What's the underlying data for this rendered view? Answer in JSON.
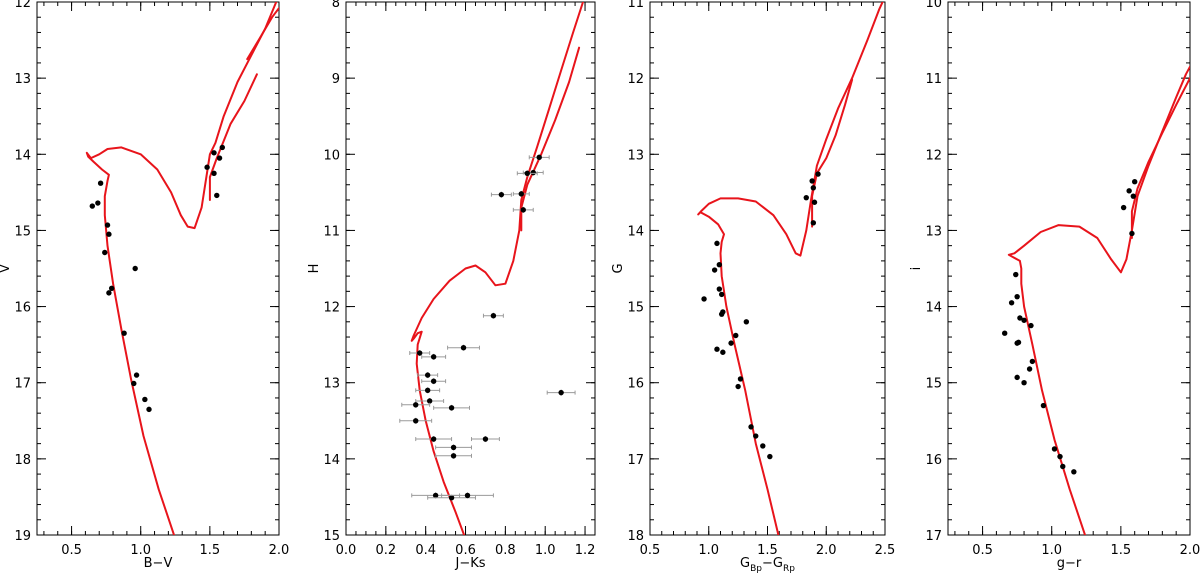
{
  "figure": {
    "panel_count": 4
  },
  "colors": {
    "isochrone": "#e8141b",
    "points": "#000000",
    "error_bars": "#9a9a9a",
    "frame": "#000000"
  },
  "chart_data": [
    {
      "type": "scatter",
      "xlabel": "B−V",
      "ylabel": "V",
      "xlim": [
        0.25,
        2.0
      ],
      "ylim": [
        19,
        12
      ],
      "y_inverted": true,
      "xticks": [
        "0.5",
        "1.0",
        "1.5",
        "2.0"
      ],
      "xtick_values": [
        0.5,
        1.0,
        1.5,
        2.0
      ],
      "yticks": [
        "12",
        "13",
        "14",
        "15",
        "16",
        "17",
        "18",
        "19"
      ],
      "ytick_values": [
        12,
        13,
        14,
        15,
        16,
        17,
        18,
        19
      ],
      "grid": false,
      "points": [
        [
          0.71,
          14.38
        ],
        [
          0.65,
          14.68
        ],
        [
          0.69,
          14.64
        ],
        [
          0.76,
          14.93
        ],
        [
          0.77,
          15.05
        ],
        [
          0.74,
          15.29
        ],
        [
          0.96,
          15.5
        ],
        [
          0.77,
          15.82
        ],
        [
          0.79,
          15.76
        ],
        [
          0.88,
          16.35
        ],
        [
          0.97,
          16.9
        ],
        [
          0.95,
          17.01
        ],
        [
          1.03,
          17.22
        ],
        [
          1.06,
          17.35
        ],
        [
          1.48,
          14.17
        ],
        [
          1.53,
          13.98
        ],
        [
          1.59,
          13.91
        ],
        [
          1.57,
          14.05
        ],
        [
          1.53,
          14.25
        ],
        [
          1.55,
          14.54
        ]
      ],
      "isochrone": [
        [
          1.25,
          19.05
        ],
        [
          1.13,
          18.4
        ],
        [
          1.02,
          17.7
        ],
        [
          0.93,
          16.95
        ],
        [
          0.86,
          16.3
        ],
        [
          0.8,
          15.7
        ],
        [
          0.76,
          15.2
        ],
        [
          0.74,
          14.8
        ],
        [
          0.74,
          14.55
        ],
        [
          0.76,
          14.35
        ],
        [
          0.77,
          14.27
        ],
        [
          0.72,
          14.2
        ],
        [
          0.66,
          14.1
        ],
        [
          0.62,
          14.03
        ],
        [
          0.61,
          13.98
        ],
        [
          0.64,
          14.05
        ],
        [
          0.7,
          14.0
        ],
        [
          0.76,
          13.93
        ],
        [
          0.86,
          13.91
        ],
        [
          1.0,
          14.0
        ],
        [
          1.12,
          14.2
        ],
        [
          1.22,
          14.5
        ],
        [
          1.29,
          14.8
        ],
        [
          1.34,
          14.95
        ],
        [
          1.39,
          14.97
        ],
        [
          1.44,
          14.7
        ],
        [
          1.5,
          14.0
        ],
        [
          1.54,
          13.85
        ],
        [
          1.6,
          13.5
        ],
        [
          1.7,
          13.05
        ],
        [
          1.8,
          12.7
        ],
        [
          1.9,
          12.35
        ],
        [
          1.98,
          12.0
        ]
      ],
      "isochrone_branch": [
        [
          1.5,
          14.6
        ],
        [
          1.5,
          14.3
        ],
        [
          1.55,
          14.05
        ],
        [
          1.65,
          13.6
        ],
        [
          1.75,
          13.3
        ],
        [
          1.84,
          12.95
        ]
      ],
      "isochrone_branch2": [
        [
          1.77,
          12.75
        ],
        [
          1.86,
          12.48
        ],
        [
          1.95,
          12.2
        ],
        [
          2.0,
          12.08
        ]
      ]
    },
    {
      "type": "scatter",
      "xlabel": "J−Ks",
      "ylabel": "H",
      "xlim": [
        0.0,
        1.25
      ],
      "ylim": [
        15,
        8
      ],
      "y_inverted": true,
      "xticks": [
        "0.0",
        "0.2",
        "0.4",
        "0.6",
        "0.8",
        "1.0",
        "1.2"
      ],
      "xtick_values": [
        0.0,
        0.2,
        0.4,
        0.6,
        0.8,
        1.0,
        1.2
      ],
      "yticks": [
        "8",
        "9",
        "10",
        "11",
        "12",
        "13",
        "14",
        "15"
      ],
      "ytick_values": [
        8,
        9,
        10,
        11,
        12,
        13,
        14,
        15
      ],
      "grid": false,
      "points": [
        [
          0.97,
          10.04,
          0.05
        ],
        [
          0.94,
          10.24,
          0.05
        ],
        [
          0.91,
          10.25,
          0.05
        ],
        [
          0.78,
          10.53,
          0.05
        ],
        [
          0.88,
          10.52,
          0.04
        ],
        [
          0.89,
          10.73,
          0.05
        ],
        [
          0.74,
          12.12,
          0.05
        ],
        [
          0.59,
          12.54,
          0.08
        ],
        [
          0.37,
          12.61,
          0.05
        ],
        [
          0.44,
          12.66,
          0.06
        ],
        [
          0.41,
          12.9,
          0.05
        ],
        [
          0.44,
          12.98,
          0.06
        ],
        [
          0.41,
          13.1,
          0.06
        ],
        [
          0.42,
          13.24,
          0.07
        ],
        [
          0.35,
          13.29,
          0.07
        ],
        [
          0.53,
          13.33,
          0.09
        ],
        [
          0.35,
          13.5,
          0.08
        ],
        [
          0.44,
          13.74,
          0.09
        ],
        [
          0.7,
          13.74,
          0.07
        ],
        [
          0.54,
          13.85,
          0.09
        ],
        [
          0.54,
          13.96,
          0.09
        ],
        [
          1.08,
          13.13,
          0.07
        ],
        [
          0.45,
          14.48,
          0.12
        ],
        [
          0.53,
          14.51,
          0.12
        ],
        [
          0.61,
          14.48,
          0.13
        ]
      ],
      "isochrone": [
        [
          0.6,
          15.05
        ],
        [
          0.55,
          14.7
        ],
        [
          0.49,
          14.3
        ],
        [
          0.44,
          13.9
        ],
        [
          0.4,
          13.5
        ],
        [
          0.37,
          13.1
        ],
        [
          0.355,
          12.75
        ],
        [
          0.36,
          12.5
        ],
        [
          0.38,
          12.33
        ],
        [
          0.36,
          12.35
        ],
        [
          0.34,
          12.42
        ],
        [
          0.33,
          12.45
        ],
        [
          0.34,
          12.38
        ],
        [
          0.38,
          12.15
        ],
        [
          0.44,
          11.9
        ],
        [
          0.52,
          11.66
        ],
        [
          0.6,
          11.5
        ],
        [
          0.65,
          11.46
        ],
        [
          0.7,
          11.55
        ],
        [
          0.75,
          11.72
        ],
        [
          0.8,
          11.7
        ],
        [
          0.84,
          11.4
        ],
        [
          0.87,
          11.0
        ],
        [
          0.88,
          10.6
        ],
        [
          0.91,
          10.3
        ],
        [
          0.96,
          9.9
        ],
        [
          1.02,
          9.4
        ],
        [
          1.08,
          8.9
        ],
        [
          1.14,
          8.4
        ],
        [
          1.19,
          8.0
        ]
      ],
      "isochrone_branch": [
        [
          0.88,
          11.0
        ],
        [
          0.88,
          10.7
        ],
        [
          0.91,
          10.4
        ],
        [
          0.98,
          10.0
        ],
        [
          1.05,
          9.55
        ],
        [
          1.12,
          9.05
        ],
        [
          1.17,
          8.6
        ]
      ]
    },
    {
      "type": "scatter",
      "xlabel": "G_Bp−G_Rp",
      "xlabel_parts": {
        "g1": "G",
        "s1": "Bp",
        "sep": "−G",
        "s2": "Rp"
      },
      "ylabel": "G",
      "xlim": [
        0.5,
        2.5
      ],
      "ylim": [
        18,
        11
      ],
      "y_inverted": true,
      "xticks": [
        "0.5",
        "1.0",
        "1.5",
        "2.0",
        "2.5"
      ],
      "xtick_values": [
        0.5,
        1.0,
        1.5,
        2.0,
        2.5
      ],
      "yticks": [
        "11",
        "12",
        "13",
        "14",
        "15",
        "16",
        "17",
        "18"
      ],
      "ytick_values": [
        11,
        12,
        13,
        14,
        15,
        16,
        17,
        18
      ],
      "grid": false,
      "points": [
        [
          1.07,
          14.17
        ],
        [
          1.09,
          14.45
        ],
        [
          1.05,
          14.52
        ],
        [
          1.09,
          14.77
        ],
        [
          1.11,
          14.84
        ],
        [
          0.96,
          14.9
        ],
        [
          1.12,
          15.07
        ],
        [
          1.11,
          15.1
        ],
        [
          1.32,
          15.2
        ],
        [
          1.23,
          15.38
        ],
        [
          1.19,
          15.48
        ],
        [
          1.07,
          15.56
        ],
        [
          1.12,
          15.6
        ],
        [
          1.27,
          15.95
        ],
        [
          1.25,
          16.05
        ],
        [
          1.36,
          16.58
        ],
        [
          1.4,
          16.7
        ],
        [
          1.46,
          16.83
        ],
        [
          1.52,
          16.97
        ],
        [
          1.83,
          13.57
        ],
        [
          1.88,
          13.35
        ],
        [
          1.93,
          13.26
        ],
        [
          1.89,
          13.44
        ],
        [
          1.9,
          13.63
        ],
        [
          1.89,
          13.9
        ]
      ],
      "isochrone": [
        [
          1.6,
          18.05
        ],
        [
          1.5,
          17.4
        ],
        [
          1.4,
          16.8
        ],
        [
          1.31,
          16.1
        ],
        [
          1.22,
          15.5
        ],
        [
          1.15,
          15.0
        ],
        [
          1.11,
          14.6
        ],
        [
          1.1,
          14.3
        ],
        [
          1.11,
          14.15
        ],
        [
          1.13,
          14.05
        ],
        [
          1.08,
          13.92
        ],
        [
          1.0,
          13.82
        ],
        [
          0.93,
          13.76
        ],
        [
          0.91,
          13.79
        ],
        [
          0.94,
          13.74
        ],
        [
          1.0,
          13.65
        ],
        [
          1.1,
          13.58
        ],
        [
          1.25,
          13.58
        ],
        [
          1.4,
          13.62
        ],
        [
          1.55,
          13.8
        ],
        [
          1.66,
          14.05
        ],
        [
          1.74,
          14.3
        ],
        [
          1.78,
          14.33
        ],
        [
          1.83,
          14.0
        ],
        [
          1.87,
          13.6
        ],
        [
          1.92,
          13.15
        ],
        [
          2.0,
          12.8
        ],
        [
          2.1,
          12.4
        ],
        [
          2.22,
          12.0
        ],
        [
          2.35,
          11.5
        ],
        [
          2.45,
          11.1
        ],
        [
          2.48,
          11.0
        ]
      ],
      "isochrone_branch": [
        [
          1.88,
          13.95
        ],
        [
          1.88,
          13.55
        ],
        [
          1.92,
          13.25
        ],
        [
          2.0,
          13.05
        ],
        [
          2.08,
          12.75
        ],
        [
          2.16,
          12.35
        ],
        [
          2.22,
          12.02
        ]
      ]
    },
    {
      "type": "scatter",
      "xlabel": "g−r",
      "ylabel": "i",
      "xlim": [
        0.25,
        2.0
      ],
      "ylim": [
        17,
        10
      ],
      "y_inverted": true,
      "xticks": [
        "0.5",
        "1.0",
        "1.5",
        "2.0"
      ],
      "xtick_values": [
        0.5,
        1.0,
        1.5,
        2.0
      ],
      "yticks": [
        "10",
        "11",
        "12",
        "13",
        "14",
        "15",
        "16",
        "17"
      ],
      "ytick_values": [
        10,
        11,
        12,
        13,
        14,
        15,
        16,
        17
      ],
      "grid": false,
      "points": [
        [
          0.74,
          13.58
        ],
        [
          0.71,
          13.95
        ],
        [
          0.75,
          13.87
        ],
        [
          0.77,
          14.15
        ],
        [
          0.8,
          14.18
        ],
        [
          0.66,
          14.35
        ],
        [
          0.85,
          14.25
        ],
        [
          0.75,
          14.48
        ],
        [
          0.76,
          14.47
        ],
        [
          0.86,
          14.72
        ],
        [
          0.84,
          14.82
        ],
        [
          0.75,
          14.93
        ],
        [
          0.8,
          15.0
        ],
        [
          0.94,
          15.3
        ],
        [
          1.02,
          15.87
        ],
        [
          1.06,
          15.97
        ],
        [
          1.08,
          16.1
        ],
        [
          1.16,
          16.17
        ],
        [
          1.52,
          12.7
        ],
        [
          1.56,
          12.48
        ],
        [
          1.6,
          12.36
        ],
        [
          1.59,
          12.55
        ],
        [
          1.58,
          13.04
        ]
      ],
      "isochrone": [
        [
          1.25,
          17.05
        ],
        [
          1.13,
          16.4
        ],
        [
          1.02,
          15.75
        ],
        [
          0.93,
          15.1
        ],
        [
          0.86,
          14.5
        ],
        [
          0.8,
          14.0
        ],
        [
          0.78,
          13.7
        ],
        [
          0.78,
          13.5
        ],
        [
          0.77,
          13.4
        ],
        [
          0.72,
          13.35
        ],
        [
          0.69,
          13.32
        ],
        [
          0.73,
          13.3
        ],
        [
          0.8,
          13.2
        ],
        [
          0.92,
          13.02
        ],
        [
          1.05,
          12.93
        ],
        [
          1.2,
          12.95
        ],
        [
          1.33,
          13.1
        ],
        [
          1.43,
          13.38
        ],
        [
          1.5,
          13.55
        ],
        [
          1.54,
          13.38
        ],
        [
          1.58,
          13.0
        ],
        [
          1.62,
          12.55
        ],
        [
          1.7,
          12.15
        ],
        [
          1.8,
          11.7
        ],
        [
          1.9,
          11.25
        ],
        [
          1.97,
          10.95
        ],
        [
          2.0,
          10.85
        ]
      ],
      "isochrone_branch": [
        [
          1.58,
          13.1
        ],
        [
          1.58,
          12.75
        ],
        [
          1.62,
          12.45
        ],
        [
          1.7,
          12.1
        ],
        [
          1.8,
          11.72
        ],
        [
          1.9,
          11.35
        ],
        [
          2.0,
          11.0
        ]
      ]
    }
  ]
}
